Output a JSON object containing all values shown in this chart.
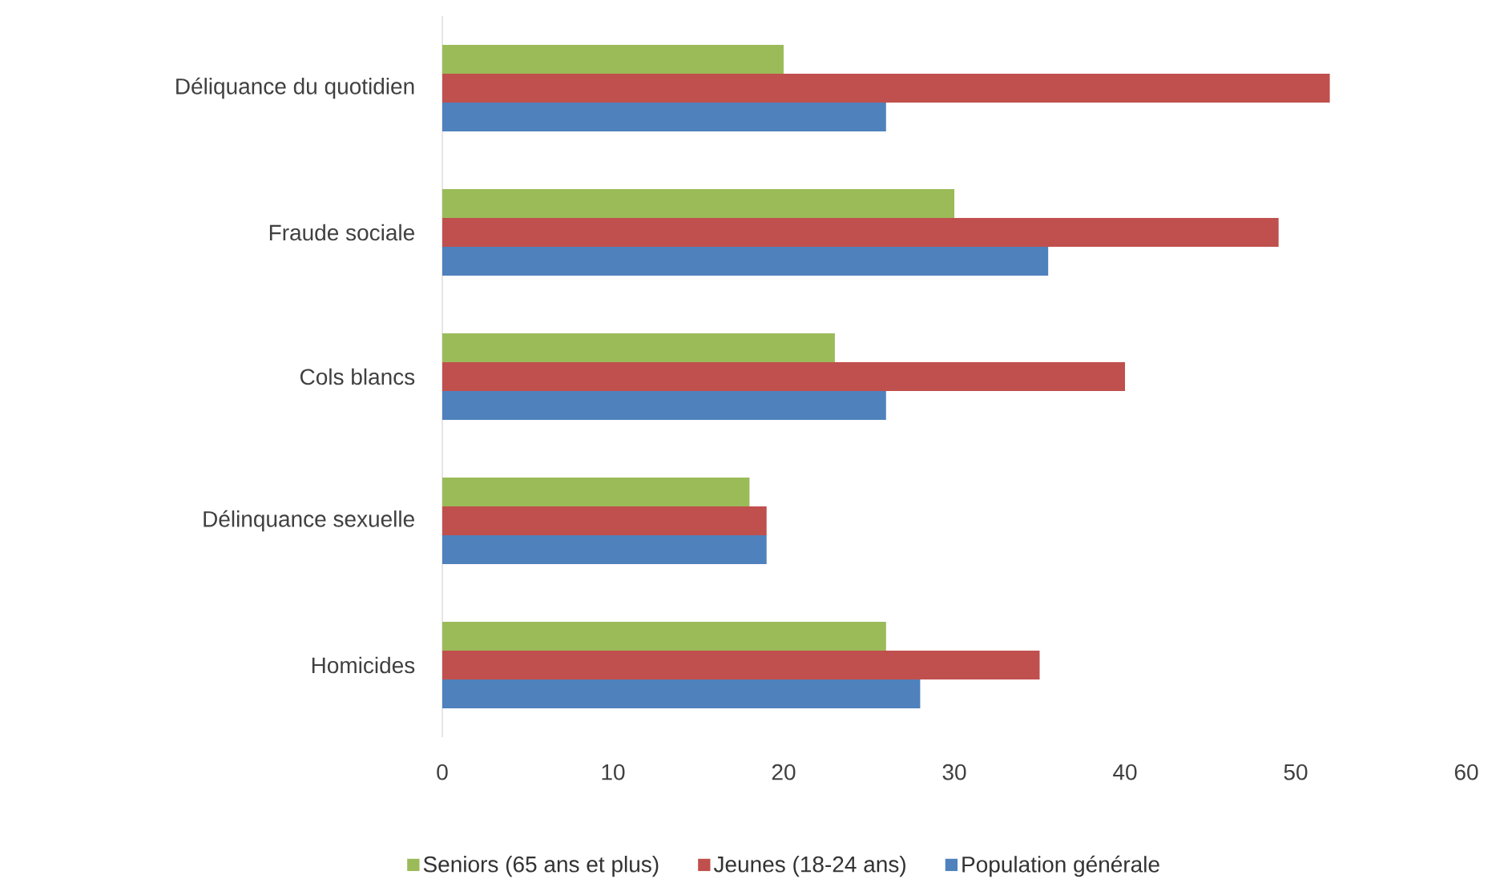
{
  "chart_data": {
    "type": "bar",
    "orientation": "horizontal",
    "categories": [
      "Déliquance du quotidien",
      "Fraude sociale",
      "Cols blancs",
      "Délinquance sexuelle",
      "Homicides"
    ],
    "series": [
      {
        "name": "Seniors (65 ans et plus)",
        "color": "#9bbb59",
        "values": [
          20,
          30,
          23,
          18,
          26
        ]
      },
      {
        "name": "Jeunes (18-24 ans)",
        "color": "#c0504d",
        "values": [
          52,
          49,
          40,
          19,
          35
        ]
      },
      {
        "name": "Population générale",
        "color": "#4f81bd",
        "values": [
          26,
          35.5,
          26,
          19,
          28
        ]
      }
    ],
    "xlim": [
      0,
      60
    ],
    "xticks": [
      0,
      10,
      20,
      30,
      40,
      50,
      60
    ],
    "legend": "bottom",
    "grid": false
  }
}
